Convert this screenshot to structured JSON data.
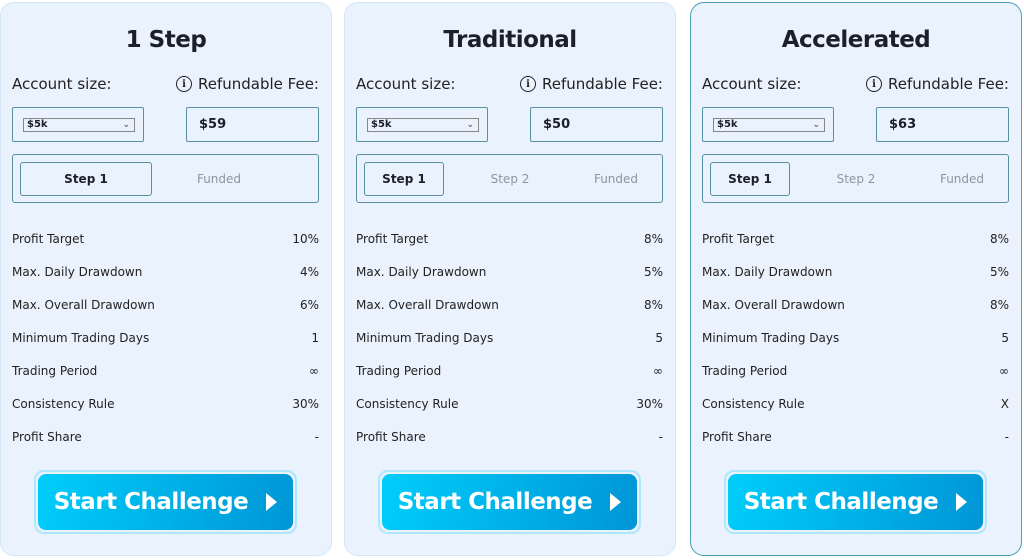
{
  "labels": {
    "account_size": "Account size:",
    "fee": "Refundable Fee:",
    "button": "Start Challenge"
  },
  "row_labels": [
    "Profit Target",
    "Max. Daily Drawdown",
    "Max. Overall Drawdown",
    "Minimum Trading Days",
    "Trading Period",
    "Consistency Rule",
    "Profit Share"
  ],
  "colors": {
    "card_bg": "#eaf2fd",
    "button_start": "#00cdfa",
    "button_end": "#0096d6",
    "border": "#5a8ea3"
  },
  "cards": [
    {
      "title": "1 Step",
      "account_size": "$5k",
      "fee": "$59",
      "tabs": [
        "Step 1",
        "Funded"
      ],
      "active_tab": 0,
      "values": [
        "10%",
        "4%",
        "6%",
        "1",
        "∞",
        "30%",
        "-"
      ],
      "highlighted": false
    },
    {
      "title": "Traditional",
      "account_size": "$5k",
      "fee": "$50",
      "tabs": [
        "Step 1",
        "Step 2",
        "Funded"
      ],
      "active_tab": 0,
      "values": [
        "8%",
        "5%",
        "8%",
        "5",
        "∞",
        "30%",
        "-"
      ],
      "highlighted": false
    },
    {
      "title": "Accelerated",
      "account_size": "$5k",
      "fee": "$63",
      "tabs": [
        "Step 1",
        "Step 2",
        "Funded"
      ],
      "active_tab": 0,
      "values": [
        "8%",
        "5%",
        "8%",
        "5",
        "∞",
        "X",
        "-"
      ],
      "highlighted": true
    }
  ]
}
